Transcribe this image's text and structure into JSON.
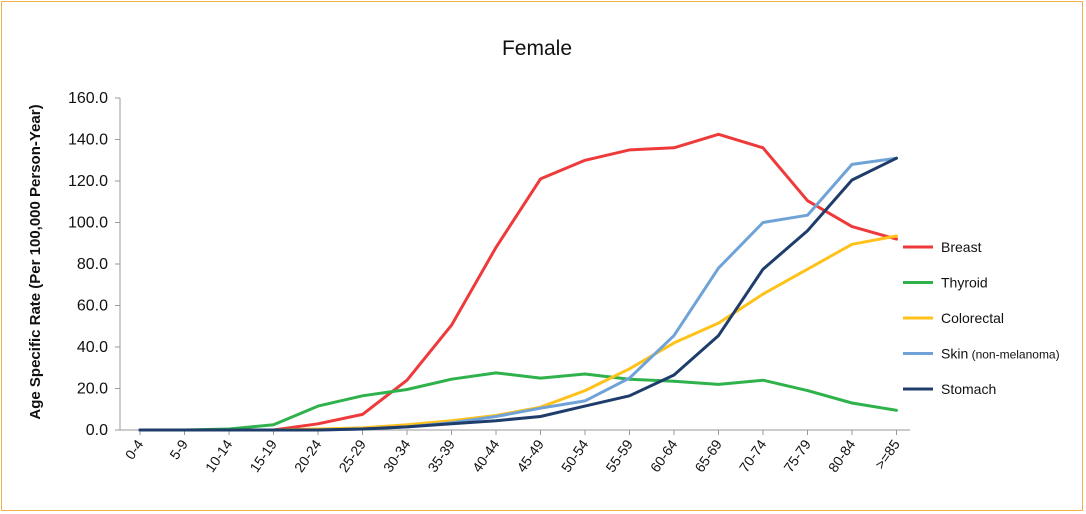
{
  "chart_data": {
    "type": "line",
    "title": "Female",
    "xlabel": "",
    "ylabel": "Age Specific Rate  (Per 100,000 Person-Year)",
    "ylim": [
      0,
      160
    ],
    "yticks": [
      "0.0",
      "20.0",
      "40.0",
      "60.0",
      "80.0",
      "100.0",
      "120.0",
      "140.0",
      "160.0"
    ],
    "ytick_values": [
      0,
      20,
      40,
      60,
      80,
      100,
      120,
      140,
      160
    ],
    "categories": [
      "0-4",
      "5-9",
      "10-14",
      "15-19",
      "20-24",
      "25-29",
      "30-34",
      "35-39",
      "40-44",
      "45-49",
      "50-54",
      "55-59",
      "60-64",
      "65-69",
      "70-74",
      "75-79",
      "80-84",
      ">=85"
    ],
    "legend_position": "right",
    "series": [
      {
        "name": "Breast",
        "sub": "",
        "color": "#ee3a3a",
        "values": [
          0,
          0,
          0,
          0,
          3,
          7.5,
          24,
          50.5,
          88,
          121,
          130,
          135,
          136,
          142.5,
          136,
          110.5,
          98,
          92
        ]
      },
      {
        "name": "Thyroid",
        "sub": "",
        "color": "#2fb24c",
        "values": [
          0,
          0,
          0.5,
          2.5,
          11.5,
          16.5,
          19.5,
          24.5,
          27.5,
          25,
          27,
          24.5,
          23.5,
          22,
          24,
          19,
          13,
          9.5
        ]
      },
      {
        "name": "Colorectal",
        "sub": "",
        "color": "#ffc21a",
        "values": [
          0,
          0,
          0,
          0,
          0.5,
          1,
          2.5,
          4.5,
          7,
          11,
          19,
          29.5,
          42,
          51.5,
          65.5,
          77.5,
          89.5,
          93.5
        ]
      },
      {
        "name": "Skin",
        "sub": "(non-melanoma)",
        "color": "#6fa3d8",
        "values": [
          0,
          0,
          0,
          0,
          0,
          0.5,
          1.5,
          3.5,
          6.5,
          10.5,
          14,
          25,
          45.5,
          78,
          100,
          103.5,
          128,
          131
        ]
      },
      {
        "name": "Stomach",
        "sub": "",
        "color": "#1f3d6b",
        "values": [
          0,
          0,
          0,
          0,
          0,
          0.5,
          1.5,
          3,
          4.5,
          6.5,
          11.5,
          16.5,
          26.5,
          45.5,
          77.5,
          96,
          120.5,
          131
        ]
      }
    ]
  }
}
